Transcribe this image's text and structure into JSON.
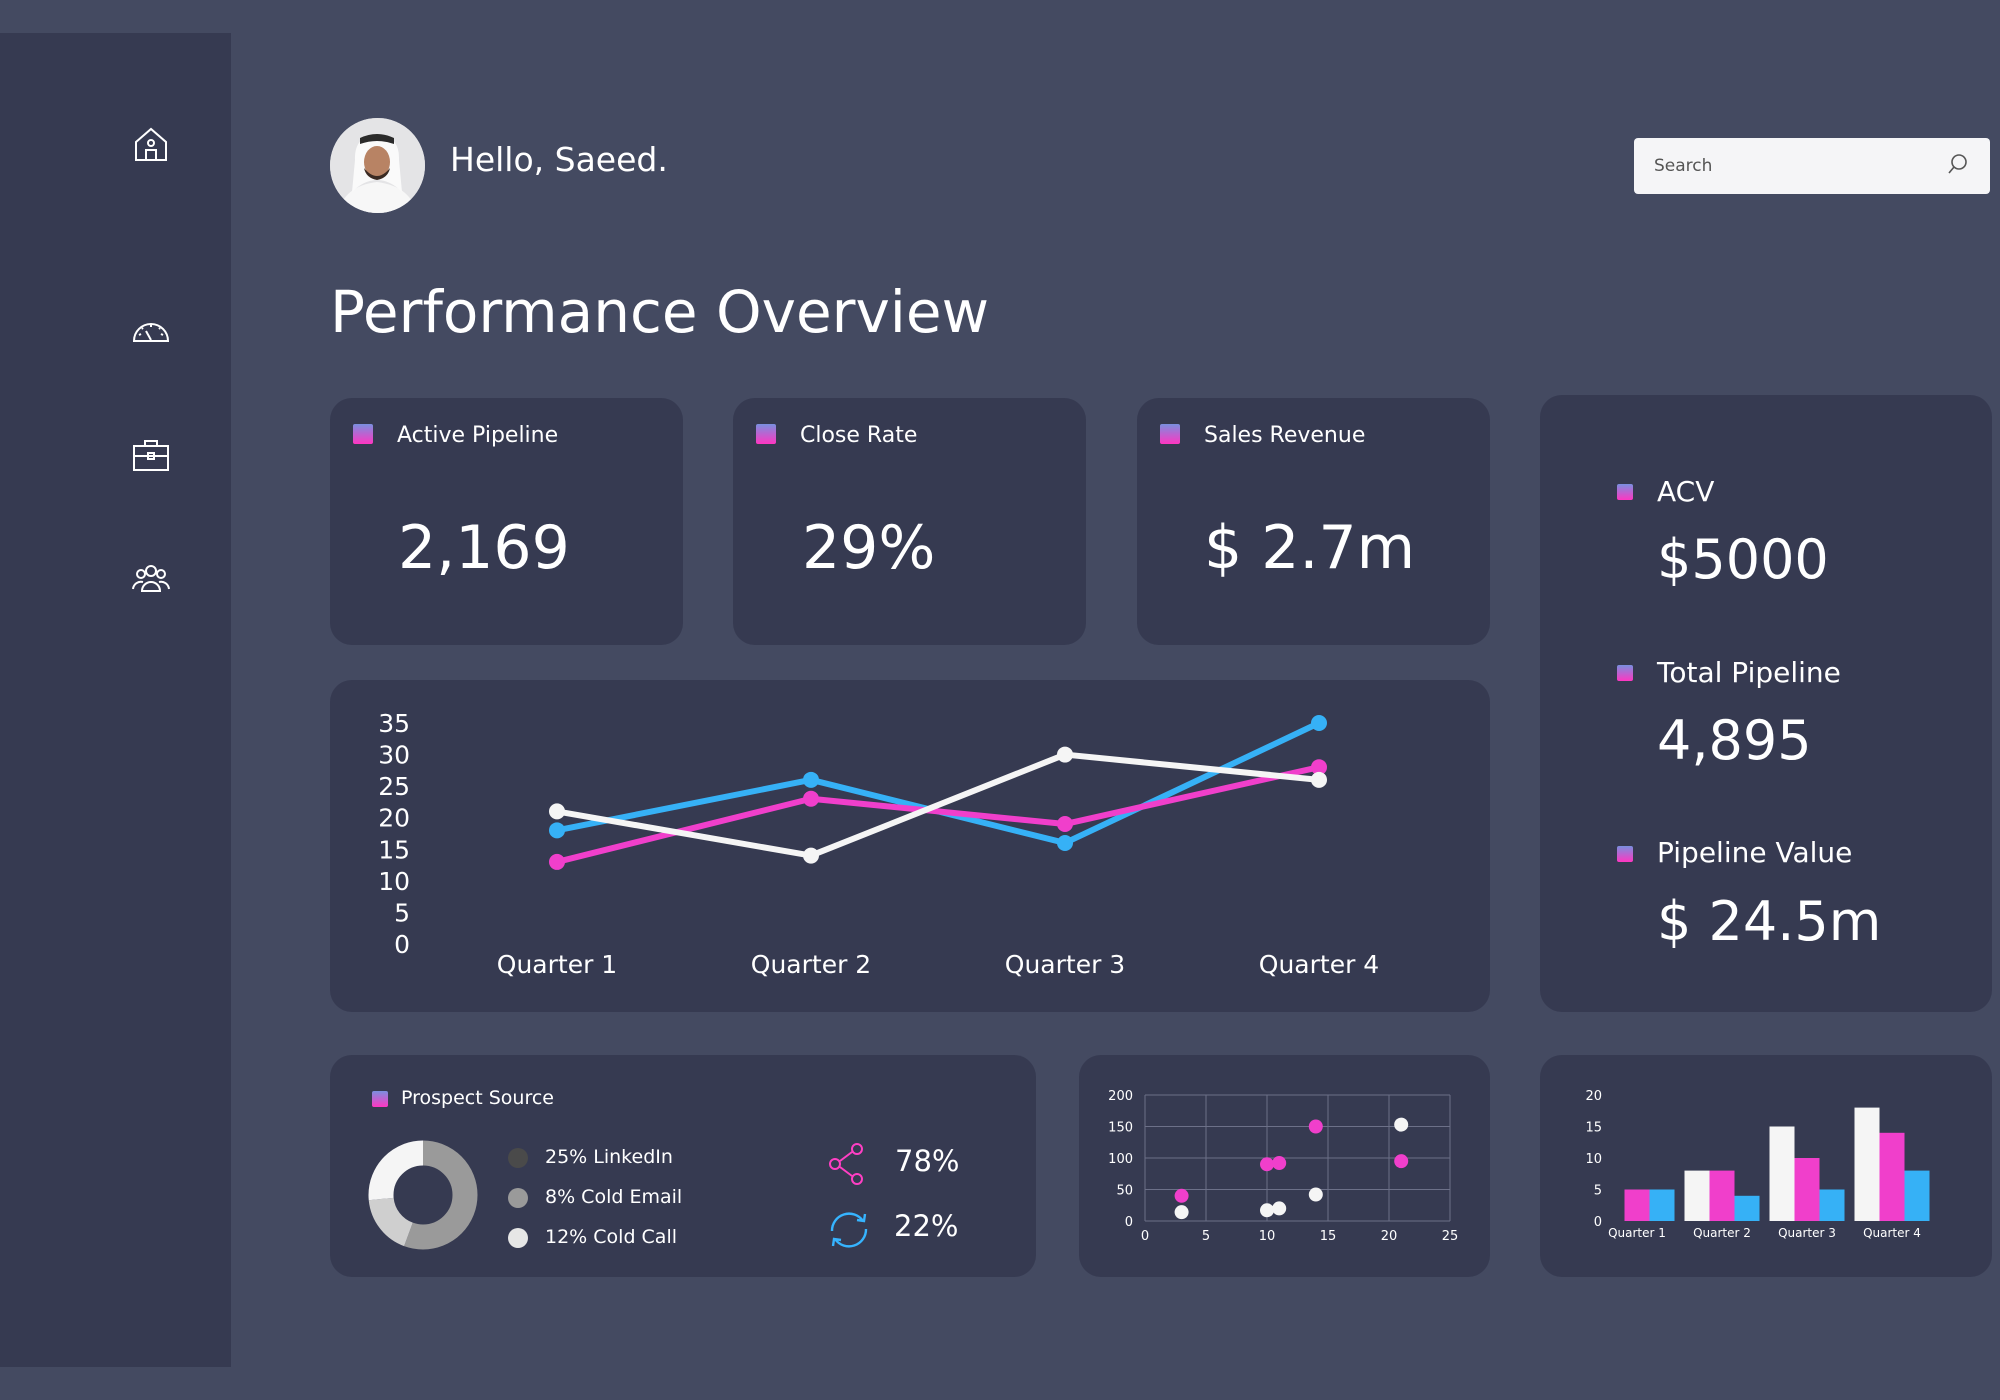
{
  "header": {
    "greeting": "Hello, Saeed.",
    "search_placeholder": "Search"
  },
  "page_title": "Performance Overview",
  "sidebar": {
    "items": [
      {
        "icon": "home-icon"
      },
      {
        "icon": "speedometer-icon"
      },
      {
        "icon": "briefcase-icon"
      },
      {
        "icon": "users-icon"
      }
    ]
  },
  "kpis": [
    {
      "label": "Active Pipeline",
      "value": "2,169"
    },
    {
      "label": "Close Rate",
      "value": "29%"
    },
    {
      "label": "Sales Revenue",
      "value": "$ 2.7m"
    }
  ],
  "side_stats": [
    {
      "label": "ACV",
      "value": "$5000"
    },
    {
      "label": "Total Pipeline",
      "value": "4,895"
    },
    {
      "label": "Pipeline Value",
      "value": "$ 24.5m"
    }
  ],
  "prospect_source": {
    "title": "Prospect Source",
    "legend": [
      {
        "label": "25% LinkedIn",
        "color": "#4a4a4a"
      },
      {
        "label": "8% Cold Email",
        "color": "#9a9a9a"
      },
      {
        "label": "12% Cold Call",
        "color": "#e6e6e6"
      }
    ],
    "stats": [
      {
        "icon": "share-icon",
        "value": "78%",
        "color": "#ff3fc4"
      },
      {
        "icon": "refresh-icon",
        "value": "22%",
        "color": "#36b4ff"
      }
    ]
  },
  "colors": {
    "pink": "#f03fcb",
    "blue": "#36b1f6",
    "white": "#f5f5f5"
  },
  "chart_data": [
    {
      "type": "line",
      "categories": [
        "Quarter 1",
        "Quarter 2",
        "Quarter 3",
        "Quarter 4"
      ],
      "ylim": [
        0,
        35
      ],
      "yticks": [
        0,
        5,
        10,
        15,
        20,
        25,
        30,
        35
      ],
      "grid": false,
      "series": [
        {
          "color": "#36b1f6",
          "values": [
            18,
            26,
            16,
            35
          ]
        },
        {
          "color": "#f03fcb",
          "values": [
            13,
            23,
            19,
            28
          ]
        },
        {
          "color": "#f5f5f5",
          "values": [
            21,
            14,
            30,
            26
          ]
        }
      ]
    },
    {
      "type": "scatter",
      "xlim": [
        0,
        25
      ],
      "ylim": [
        0,
        200
      ],
      "xticks": [
        0,
        5,
        10,
        15,
        20,
        25
      ],
      "yticks": [
        0,
        50,
        100,
        150,
        200
      ],
      "grid": true,
      "series": [
        {
          "color": "#f03fcb",
          "points": [
            [
              3,
              40
            ],
            [
              10,
              90
            ],
            [
              11,
              92
            ],
            [
              14,
              150
            ],
            [
              21,
              95
            ]
          ]
        },
        {
          "color": "#f5f5f5",
          "points": [
            [
              3,
              14
            ],
            [
              10,
              17
            ],
            [
              11,
              20
            ],
            [
              14,
              42
            ],
            [
              21,
              153
            ]
          ]
        }
      ]
    },
    {
      "type": "bar",
      "categories": [
        "Quarter 1",
        "Quarter 2",
        "Quarter 3",
        "Quarter 4"
      ],
      "ylim": [
        0,
        20
      ],
      "yticks": [
        0,
        5,
        10,
        15,
        20
      ],
      "grid": false,
      "series": [
        {
          "color": "#f5f5f5",
          "values": [
            0,
            8,
            15,
            18
          ]
        },
        {
          "color": "#f03fcb",
          "values": [
            5,
            8,
            10,
            14
          ]
        },
        {
          "color": "#36b1f6",
          "values": [
            5,
            4,
            5,
            8
          ]
        }
      ]
    },
    {
      "type": "pie",
      "donut": true,
      "slices": [
        {
          "label": "25% LinkedIn",
          "value": 25,
          "color": "#9a9a9a"
        },
        {
          "label": "8% Cold Email",
          "value": 8,
          "color": "#cfcfcf"
        },
        {
          "label": "12% Cold Call",
          "value": 12,
          "color": "#f5f5f5"
        }
      ]
    }
  ]
}
